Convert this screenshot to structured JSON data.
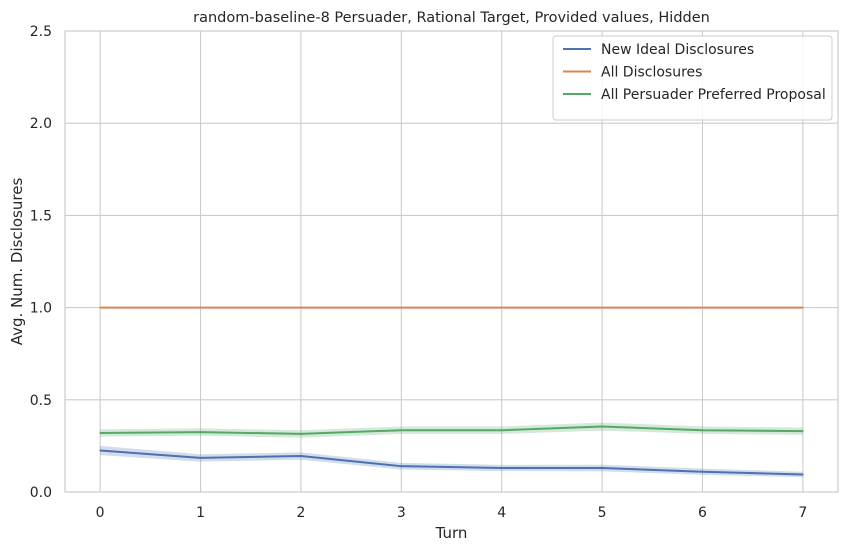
{
  "chart_data": {
    "type": "line",
    "title": "random-baseline-8 Persuader, Rational Target, Provided values, Hidden",
    "xlabel": "Turn",
    "ylabel": "Avg. Num. Disclosures",
    "x": [
      0,
      1,
      2,
      3,
      4,
      5,
      6,
      7
    ],
    "x_ticks": [
      "0",
      "1",
      "2",
      "3",
      "4",
      "5",
      "6",
      "7"
    ],
    "y_ticks": [
      "0.0",
      "0.5",
      "1.0",
      "1.5",
      "2.0",
      "2.5"
    ],
    "xlim": [
      -0.35,
      7.35
    ],
    "ylim": [
      0,
      2.5
    ],
    "grid": true,
    "legend_position": "top-right",
    "series": [
      {
        "name": "New Ideal Disclosures",
        "color": "#4c72b0",
        "values": [
          0.225,
          0.185,
          0.195,
          0.14,
          0.13,
          0.13,
          0.11,
          0.095
        ],
        "lower": [
          0.2,
          0.165,
          0.175,
          0.122,
          0.113,
          0.112,
          0.093,
          0.08
        ],
        "upper": [
          0.25,
          0.205,
          0.215,
          0.158,
          0.147,
          0.148,
          0.127,
          0.11
        ]
      },
      {
        "name": "All Disclosures",
        "color": "#dd8452",
        "values": [
          1.0,
          1.0,
          1.0,
          1.0,
          1.0,
          1.0,
          1.0,
          1.0
        ],
        "lower": [
          1.0,
          1.0,
          1.0,
          1.0,
          1.0,
          1.0,
          1.0,
          1.0
        ],
        "upper": [
          1.0,
          1.0,
          1.0,
          1.0,
          1.0,
          1.0,
          1.0,
          1.0
        ]
      },
      {
        "name": "All Persuader Preferred Proposal",
        "color": "#55a868",
        "values": [
          0.32,
          0.325,
          0.315,
          0.335,
          0.335,
          0.355,
          0.335,
          0.33
        ],
        "lower": [
          0.3,
          0.305,
          0.295,
          0.315,
          0.315,
          0.333,
          0.315,
          0.31
        ],
        "upper": [
          0.34,
          0.345,
          0.335,
          0.355,
          0.355,
          0.377,
          0.355,
          0.35
        ]
      }
    ]
  }
}
